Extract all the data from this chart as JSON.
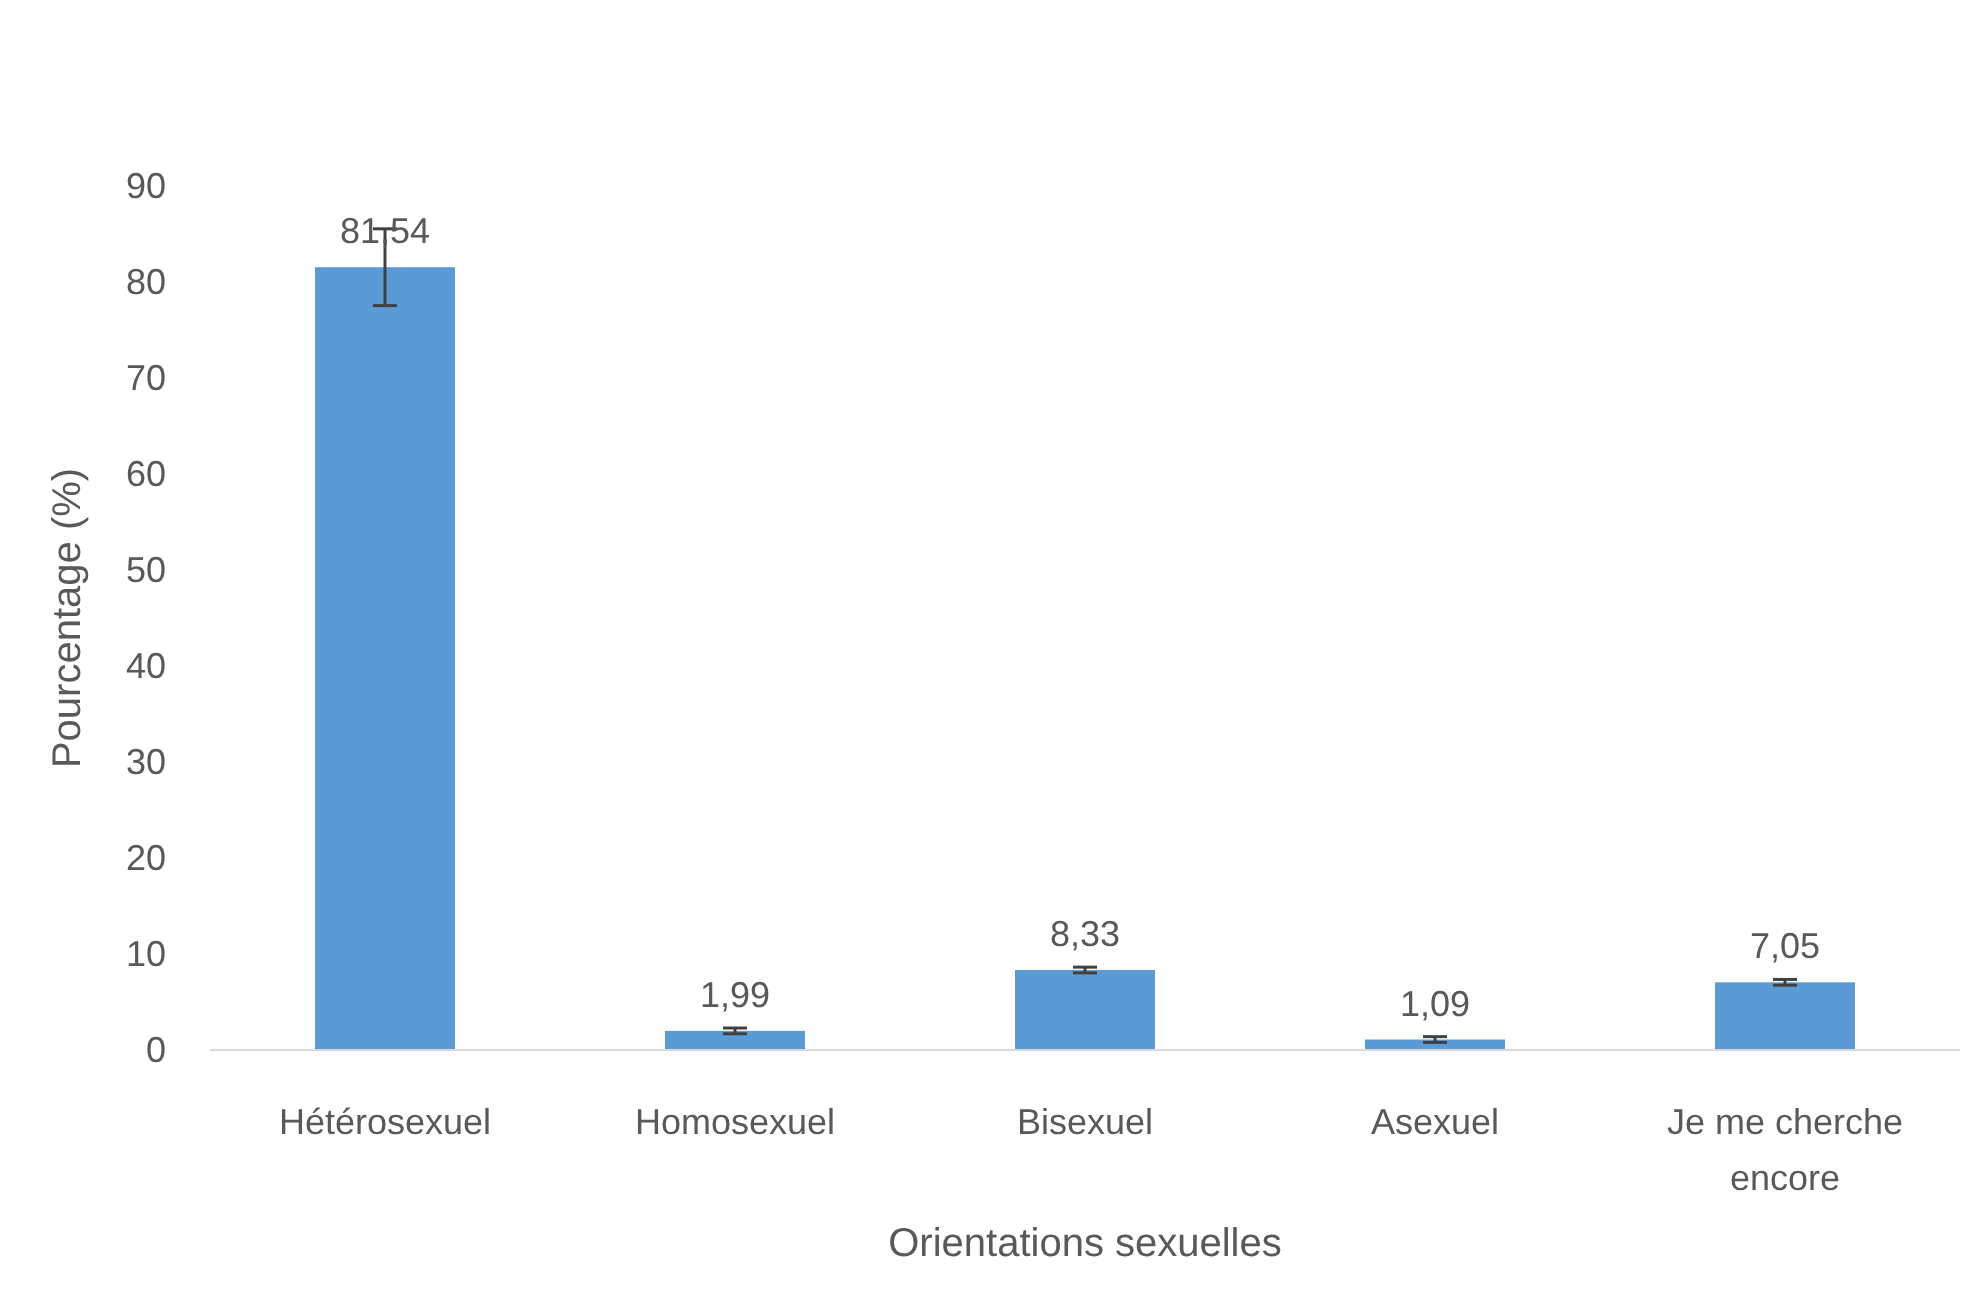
{
  "chart_data": {
    "type": "bar",
    "xlabel": "Orientations sexuelles",
    "ylabel": "Pourcentage (%)",
    "categories": [
      "Hétérosexuel",
      "Homosexuel",
      "Bisexuel",
      "Asexuel",
      "Je me cherche encore"
    ],
    "values": [
      81.54,
      1.99,
      8.33,
      1.09,
      7.05
    ],
    "value_labels": [
      "81,54",
      "1,99",
      "8,33",
      "1,09",
      "7,05"
    ],
    "errors": [
      4,
      0.3,
      0.3,
      0.3,
      0.3
    ],
    "color": "#5b9bd5",
    "ylim": [
      0,
      90
    ],
    "yticks": [
      0,
      10,
      20,
      30,
      40,
      50,
      60,
      70,
      80,
      90
    ],
    "grid": false
  }
}
